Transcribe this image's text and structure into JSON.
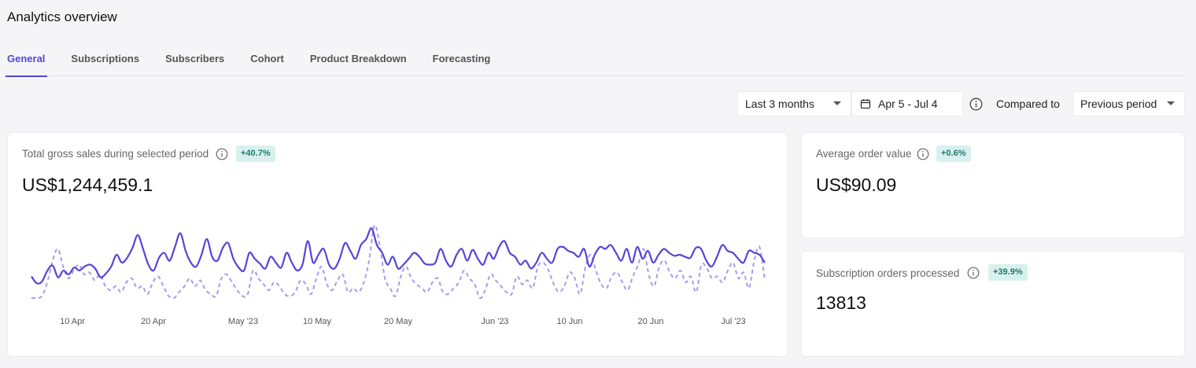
{
  "page": {
    "title": "Analytics overview"
  },
  "tabs": [
    {
      "label": "General",
      "active": true
    },
    {
      "label": "Subscriptions",
      "active": false
    },
    {
      "label": "Subscribers",
      "active": false
    },
    {
      "label": "Cohort",
      "active": false
    },
    {
      "label": "Product Breakdown",
      "active": false
    },
    {
      "label": "Forecasting",
      "active": false
    }
  ],
  "filters": {
    "range_select": "Last 3 months",
    "date_range": "Apr 5 - Jul 4",
    "compared_label": "Compared to",
    "compare_select": "Previous period"
  },
  "icons": {
    "calendar": "calendar-icon",
    "info": "info-icon",
    "chevron": "chevron-down-icon"
  },
  "colors": {
    "accent": "#5446d8",
    "current_series": "#5446d8",
    "previous_series": "#a99af0",
    "badge_bg": "#d8f1ee",
    "badge_text": "#1c7a6e"
  },
  "cards": {
    "gross_sales": {
      "label": "Total gross sales during selected period",
      "change": "+40.7%",
      "value": "US$1,244,459.1"
    },
    "aov": {
      "label": "Average order value",
      "change": "+0.6%",
      "value": "US$90.09"
    },
    "sub_orders": {
      "label": "Subscription orders processed",
      "change": "+39.9%",
      "value": "13813"
    }
  },
  "chart_data": {
    "type": "line",
    "x_tick_labels": [
      "10 Apr",
      "20 Apr",
      "May '23",
      "10 May",
      "20 May",
      "Jun '23",
      "10 Jun",
      "20 Jun",
      "Jul '23"
    ],
    "x_range": [
      "Apr 5",
      "Jul 4"
    ],
    "grid": false,
    "series": [
      {
        "style": "solid",
        "values": [
          46,
          39,
          41,
          52,
          57,
          45,
          52,
          48,
          55,
          52,
          56,
          58,
          54,
          45,
          49,
          56,
          68,
          60,
          65,
          75,
          88,
          74,
          58,
          52,
          65,
          70,
          62,
          76,
          90,
          72,
          60,
          56,
          68,
          84,
          66,
          62,
          75,
          80,
          64,
          55,
          52,
          70,
          64,
          59,
          54,
          66,
          60,
          55,
          70,
          60,
          52,
          58,
          82,
          60,
          68,
          74,
          58,
          54,
          64,
          80,
          72,
          64,
          78,
          84,
          95,
          78,
          70,
          58,
          66,
          54,
          58,
          64,
          70,
          66,
          59,
          58,
          60,
          74,
          62,
          56,
          68,
          74,
          62,
          73,
          64,
          58,
          70,
          64,
          76,
          82,
          70,
          66,
          58,
          62,
          54,
          60,
          70,
          64,
          60,
          74,
          76,
          72,
          70,
          66,
          74,
          56,
          68,
          76,
          74,
          78,
          70,
          62,
          74,
          60,
          76,
          64,
          72,
          60,
          68,
          74,
          70,
          67,
          68,
          66,
          65,
          75,
          74,
          62,
          56,
          66,
          78,
          72,
          70,
          64,
          60,
          72,
          70,
          68,
          60
        ]
      },
      {
        "style": "dashed",
        "values": [
          24,
          24,
          26,
          40,
          62,
          74,
          56,
          44,
          52,
          58,
          48,
          50,
          42,
          48,
          36,
          32,
          36,
          30,
          40,
          44,
          34,
          36,
          28,
          40,
          46,
          36,
          26,
          24,
          30,
          36,
          44,
          36,
          42,
          32,
          28,
          26,
          44,
          48,
          40,
          32,
          26,
          28,
          52,
          44,
          38,
          32,
          40,
          36,
          28,
          26,
          30,
          42,
          38,
          28,
          44,
          56,
          38,
          32,
          42,
          48,
          30,
          34,
          30,
          40,
          62,
          98,
          78,
          44,
          34,
          26,
          46,
          56,
          44,
          38,
          34,
          30,
          40,
          44,
          30,
          28,
          34,
          40,
          52,
          44,
          38,
          24,
          32,
          48,
          42,
          36,
          30,
          28,
          46,
          38,
          42,
          34,
          56,
          60,
          52,
          38,
          30,
          36,
          50,
          44,
          28,
          56,
          68,
          52,
          38,
          34,
          46,
          50,
          40,
          32,
          46,
          58,
          74,
          48,
          36,
          56,
          62,
          50,
          44,
          52,
          40,
          46,
          30,
          58,
          54,
          44,
          46,
          40,
          52,
          60,
          44,
          50,
          34,
          62,
          76,
          42
        ]
      }
    ]
  }
}
